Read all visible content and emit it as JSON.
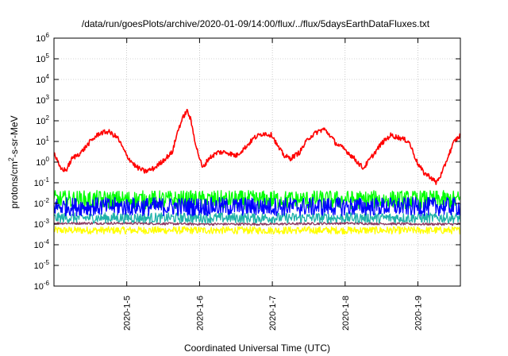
{
  "chart_data": {
    "type": "line",
    "title": "/data/run/goesPlots/archive/2020-01-09/14:00/flux/../flux/5daysEarthDataFluxes.txt",
    "xlabel": "Coordinated Universal Time (UTC)",
    "ylabel": "protons/cm²-s-sr-MeV",
    "ylabel_parts": {
      "pre": "protons/cm",
      "sup": "2",
      "post": "-s-sr-MeV"
    },
    "y_scale": "log",
    "ylim": [
      1e-06,
      1000000.0
    ],
    "xlim": [
      "2020-01-04T00:00",
      "2020-01-09T14:00"
    ],
    "x_ticks": [
      {
        "label": "2020-1-5",
        "date": "2020-01-05T00:00"
      },
      {
        "label": "2020-1-6",
        "date": "2020-01-06T00:00"
      },
      {
        "label": "2020-1-7",
        "date": "2020-01-07T00:00"
      },
      {
        "label": "2020-1-8",
        "date": "2020-01-08T00:00"
      },
      {
        "label": "2020-1-9",
        "date": "2020-01-09T00:00"
      }
    ],
    "y_ticks": [
      {
        "base": "10",
        "exp": "6"
      },
      {
        "base": "10",
        "exp": "5"
      },
      {
        "base": "10",
        "exp": "4"
      },
      {
        "base": "10",
        "exp": "3"
      },
      {
        "base": "10",
        "exp": "2"
      },
      {
        "base": "10",
        "exp": "1"
      },
      {
        "base": "10",
        "exp": "0"
      },
      {
        "base": "10",
        "exp": "-1"
      },
      {
        "base": "10",
        "exp": "-2"
      },
      {
        "base": "10",
        "exp": "-3"
      },
      {
        "base": "10",
        "exp": "-4"
      },
      {
        "base": "10",
        "exp": "-5"
      },
      {
        "base": "10",
        "exp": "-6"
      }
    ],
    "grid": true,
    "legend": "none",
    "series": [
      {
        "color": "#ffff00",
        "noise_decades": 0.18,
        "points": [
          [
            "2020-01-04T00:00",
            0.0005
          ],
          [
            "2020-01-05T00:00",
            0.0005
          ],
          [
            "2020-01-06T00:00",
            0.0005
          ],
          [
            "2020-01-07T00:00",
            0.0005
          ],
          [
            "2020-01-08T00:00",
            0.0005
          ],
          [
            "2020-01-09T00:00",
            0.0005
          ],
          [
            "2020-01-09T14:00",
            0.0005
          ]
        ]
      },
      {
        "color": "#8b3a62",
        "noise_decades": 0.06,
        "points": [
          [
            "2020-01-04T00:00",
            0.0011
          ],
          [
            "2020-01-05T00:00",
            0.0011
          ],
          [
            "2020-01-06T00:00",
            0.001
          ],
          [
            "2020-01-07T00:00",
            0.001
          ],
          [
            "2020-01-08T00:00",
            0.0011
          ],
          [
            "2020-01-09T00:00",
            0.001
          ],
          [
            "2020-01-09T14:00",
            0.001
          ]
        ]
      },
      {
        "color": "#20b2aa",
        "noise_decades": 0.25,
        "points": [
          [
            "2020-01-04T00:00",
            0.002
          ],
          [
            "2020-01-05T00:00",
            0.002
          ],
          [
            "2020-01-06T00:00",
            0.002
          ],
          [
            "2020-01-07T00:00",
            0.002
          ],
          [
            "2020-01-08T00:00",
            0.002
          ],
          [
            "2020-01-09T00:00",
            0.002
          ],
          [
            "2020-01-09T14:00",
            0.002
          ]
        ]
      },
      {
        "color": "#00ff00",
        "noise_decades": 0.45,
        "points": [
          [
            "2020-01-04T00:00",
            0.015
          ],
          [
            "2020-01-05T00:00",
            0.015
          ],
          [
            "2020-01-06T00:00",
            0.015
          ],
          [
            "2020-01-07T00:00",
            0.015
          ],
          [
            "2020-01-08T00:00",
            0.015
          ],
          [
            "2020-01-09T00:00",
            0.015
          ],
          [
            "2020-01-09T14:00",
            0.015
          ]
        ]
      },
      {
        "color": "#0000ff",
        "noise_decades": 0.45,
        "points": [
          [
            "2020-01-04T00:00",
            0.007
          ],
          [
            "2020-01-05T00:00",
            0.007
          ],
          [
            "2020-01-06T00:00",
            0.007
          ],
          [
            "2020-01-07T00:00",
            0.007
          ],
          [
            "2020-01-08T00:00",
            0.007
          ],
          [
            "2020-01-09T00:00",
            0.007
          ],
          [
            "2020-01-09T14:00",
            0.007
          ]
        ]
      },
      {
        "color": "#ff0000",
        "noise_decades": 0.12,
        "points": [
          [
            "2020-01-04T00:00",
            3
          ],
          [
            "2020-01-04T02:00",
            0.5
          ],
          [
            "2020-01-04T04:00",
            0.4
          ],
          [
            "2020-01-04T06:00",
            1.5
          ],
          [
            "2020-01-04T09:00",
            3
          ],
          [
            "2020-01-04T12:00",
            10
          ],
          [
            "2020-01-04T15:00",
            25
          ],
          [
            "2020-01-04T18:00",
            30
          ],
          [
            "2020-01-04T21:00",
            15
          ],
          [
            "2020-01-05T00:00",
            2
          ],
          [
            "2020-01-05T03:00",
            0.6
          ],
          [
            "2020-01-05T06:00",
            0.35
          ],
          [
            "2020-01-05T09:00",
            0.5
          ],
          [
            "2020-01-05T12:00",
            1.2
          ],
          [
            "2020-01-05T15:00",
            3
          ],
          [
            "2020-01-05T17:00",
            40
          ],
          [
            "2020-01-05T19:00",
            200
          ],
          [
            "2020-01-05T20:00",
            300
          ],
          [
            "2020-01-05T21:00",
            120
          ],
          [
            "2020-01-05T23:00",
            5
          ],
          [
            "2020-01-06T01:00",
            0.5
          ],
          [
            "2020-01-06T03:00",
            1.5
          ],
          [
            "2020-01-06T06:00",
            3
          ],
          [
            "2020-01-06T09:00",
            3
          ],
          [
            "2020-01-06T12:00",
            2
          ],
          [
            "2020-01-06T15:00",
            5
          ],
          [
            "2020-01-06T18:00",
            15
          ],
          [
            "2020-01-06T21:00",
            25
          ],
          [
            "2020-01-07T00:00",
            20
          ],
          [
            "2020-01-07T02:00",
            5
          ],
          [
            "2020-01-07T04:00",
            2
          ],
          [
            "2020-01-07T06:00",
            1.5
          ],
          [
            "2020-01-07T09:00",
            3
          ],
          [
            "2020-01-07T12:00",
            15
          ],
          [
            "2020-01-07T15:00",
            30
          ],
          [
            "2020-01-07T17:00",
            40
          ],
          [
            "2020-01-07T19:00",
            20
          ],
          [
            "2020-01-07T21:00",
            8
          ],
          [
            "2020-01-08T00:00",
            4
          ],
          [
            "2020-01-08T03:00",
            1.5
          ],
          [
            "2020-01-08T06:00",
            0.5
          ],
          [
            "2020-01-08T09:00",
            2
          ],
          [
            "2020-01-08T12:00",
            8
          ],
          [
            "2020-01-08T15:00",
            20
          ],
          [
            "2020-01-08T18:00",
            15
          ],
          [
            "2020-01-08T21:00",
            10
          ],
          [
            "2020-01-09T00:00",
            0.8
          ],
          [
            "2020-01-09T02:00",
            0.3
          ],
          [
            "2020-01-09T04:00",
            0.2
          ],
          [
            "2020-01-09T06:00",
            0.1
          ],
          [
            "2020-01-09T08:00",
            0.3
          ],
          [
            "2020-01-09T10:00",
            2
          ],
          [
            "2020-01-09T12:00",
            10
          ],
          [
            "2020-01-09T14:00",
            20
          ]
        ]
      }
    ]
  }
}
